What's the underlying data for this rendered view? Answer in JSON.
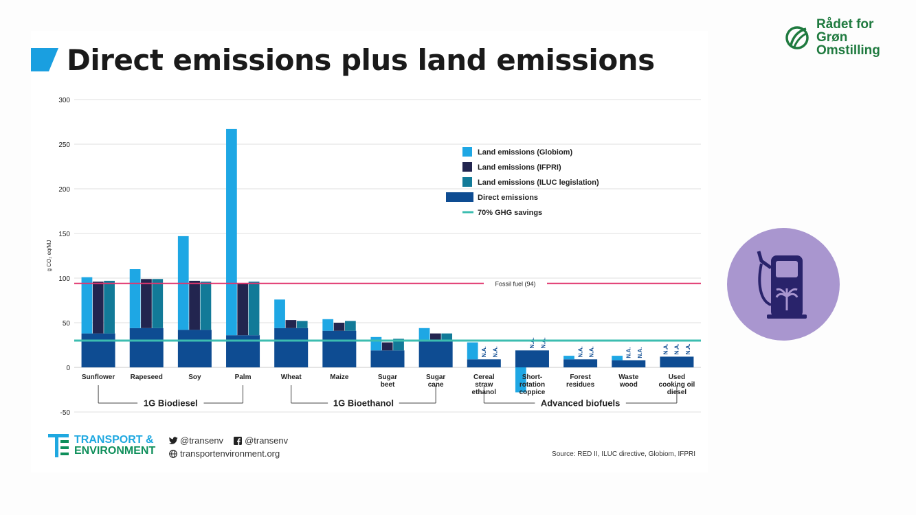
{
  "title": "Direct emissions plus land emissions",
  "brand": {
    "line1": "Rådet for",
    "line2": "Grøn",
    "line3": "Omstilling"
  },
  "colors": {
    "title_mark": "#1a9fe0",
    "globiom": "#1ea7e4",
    "ifpri": "#22254f",
    "iluc": "#127a98",
    "direct": "#0e4c92",
    "fossil": "#e0356e",
    "ghg": "#3cbdb0",
    "brand": "#1f7a3f",
    "pump_circle": "#a996cf",
    "pump": "#29236b"
  },
  "chart_data": {
    "type": "bar",
    "ylabel": "g CO₂ eq/MJ",
    "ylim": [
      -50,
      300
    ],
    "yticks": [
      300,
      250,
      200,
      150,
      100,
      50,
      0,
      -50
    ],
    "categories": [
      "Sunflower",
      "Rapeseed",
      "Soy",
      "Palm",
      "Wheat",
      "Maize",
      "Sugar beet",
      "Sugar cane",
      "Cereal straw ethanol",
      "Short-rotation coppice",
      "Forest residues",
      "Waste wood",
      "Used cooking oil diesel"
    ],
    "category_lines": [
      [
        "Sunflower"
      ],
      [
        "Rapeseed"
      ],
      [
        "Soy"
      ],
      [
        "Palm"
      ],
      [
        "Wheat"
      ],
      [
        "Maize"
      ],
      [
        "Sugar",
        "beet"
      ],
      [
        "Sugar",
        "cane"
      ],
      [
        "Cereal",
        "straw",
        "ethanol"
      ],
      [
        "Short-",
        "rotation",
        "coppice"
      ],
      [
        "Forest",
        "residues"
      ],
      [
        "Waste",
        "wood"
      ],
      [
        "Used",
        "cooking oil",
        "diesel"
      ]
    ],
    "series": [
      {
        "name": "Direct emissions",
        "values": [
          38,
          44,
          42,
          36,
          44,
          41,
          19,
          29,
          9,
          19,
          9,
          8,
          12
        ]
      },
      {
        "name": "Land emissions (Globiom)",
        "values": [
          101,
          110,
          147,
          267,
          76,
          54,
          34,
          44,
          28,
          -28,
          13,
          13,
          null
        ]
      },
      {
        "name": "Land emissions (IFPRI)",
        "values": [
          96,
          99,
          97,
          94,
          53,
          50,
          28,
          38,
          null,
          null,
          null,
          null,
          null
        ]
      },
      {
        "name": "Land emissions (ILUC legislation)",
        "values": [
          97,
          99,
          96,
          96,
          52,
          52,
          32,
          38,
          null,
          null,
          null,
          null,
          null
        ]
      }
    ],
    "na_label": "N.A.",
    "legend": [
      {
        "label": "Land emissions (Globiom)",
        "key": "globiom"
      },
      {
        "label": "Land emissions (IFPRI)",
        "key": "ifpri"
      },
      {
        "label": "Land emissions (ILUC legislation)",
        "key": "iluc"
      },
      {
        "label": "Direct emissions",
        "key": "direct"
      },
      {
        "label": "70% GHG savings",
        "key": "ghg"
      }
    ],
    "legend_position": "right",
    "grid": true,
    "reference_lines": [
      {
        "label": "Fossil fuel (94)",
        "value": 94
      },
      {
        "label": "70% GHG savings",
        "value": 30
      }
    ],
    "groups": [
      {
        "label": "1G Biodiesel",
        "from": 0,
        "to": 3
      },
      {
        "label": "1G Bioethanol",
        "from": 4,
        "to": 7
      },
      {
        "label": "Advanced biofuels",
        "from": 8,
        "to": 12
      }
    ]
  },
  "footer": {
    "te_line1": "TRANSPORT &",
    "te_line2": "ENVIRONMENT",
    "twitter": "@transenv",
    "facebook": "@transenv",
    "website": "transportenvironment.org",
    "source": "Source: RED II, ILUC directive, Globiom, IFPRI"
  }
}
